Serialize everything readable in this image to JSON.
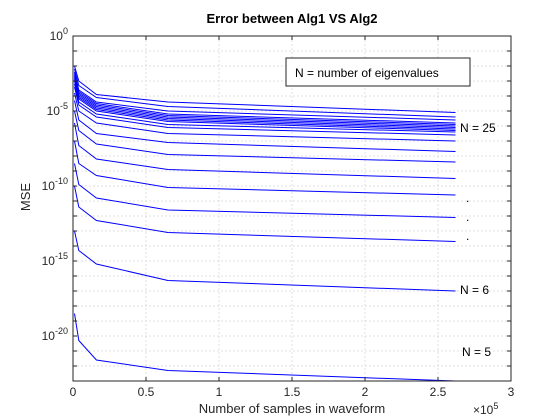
{
  "chart_data": {
    "type": "line",
    "title": "Error between Alg1 VS Alg2",
    "xlabel": "Number of samples in waveform",
    "ylabel": "MSE",
    "x_exponent_label": "×10",
    "x_exponent_power": "5",
    "xlim": [
      0,
      300000
    ],
    "ylim": [
      1e-23,
      1
    ],
    "yscale": "log",
    "grid": true,
    "line_color": "#0000ff",
    "x_ticks": [
      0,
      50000,
      100000,
      150000,
      200000,
      250000,
      300000
    ],
    "x_tick_labels": [
      "0",
      "0.5",
      "1",
      "1.5",
      "2",
      "2.5",
      "3"
    ],
    "y_ticks": [
      1e-20,
      1e-15,
      1e-10,
      1e-05,
      1
    ],
    "y_tick_labels": [
      {
        "base": "10",
        "exp": "-20"
      },
      {
        "base": "10",
        "exp": "-15"
      },
      {
        "base": "10",
        "exp": "-10"
      },
      {
        "base": "10",
        "exp": "-5"
      },
      {
        "base": "10",
        "exp": "0"
      }
    ],
    "x": [
      1000,
      4000,
      16000,
      65000,
      262000
    ],
    "series": [
      {
        "values_log10": [
          -18.5,
          -20.3,
          -21.6,
          -22.3,
          -23.0
        ]
      },
      {
        "values_log10": [
          -13.0,
          -14.3,
          -15.2,
          -16.3,
          -17.0
        ]
      },
      {
        "values_log10": [
          -10.0,
          -11.4,
          -12.3,
          -13.1,
          -13.7
        ]
      },
      {
        "values_log10": [
          -8.5,
          -9.9,
          -10.8,
          -11.6,
          -12.1
        ]
      },
      {
        "values_log10": [
          -7.0,
          -8.5,
          -9.3,
          -10.1,
          -10.6
        ]
      },
      {
        "values_log10": [
          -5.8,
          -7.3,
          -8.2,
          -8.9,
          -9.5
        ]
      },
      {
        "values_log10": [
          -5.0,
          -6.3,
          -7.2,
          -7.9,
          -8.4
        ]
      },
      {
        "values_log10": [
          -4.3,
          -5.6,
          -6.5,
          -7.1,
          -7.7
        ]
      },
      {
        "values_log10": [
          -3.8,
          -5.0,
          -5.8,
          -6.5,
          -7.0
        ]
      },
      {
        "values_log10": [
          -3.4,
          -4.6,
          -5.4,
          -6.1,
          -6.6
        ]
      },
      {
        "values_log10": [
          -3.2,
          -4.4,
          -5.2,
          -5.9,
          -6.4
        ]
      },
      {
        "values_log10": [
          -3.0,
          -4.2,
          -5.0,
          -5.7,
          -6.3
        ]
      },
      {
        "values_log10": [
          -2.9,
          -4.1,
          -4.9,
          -5.6,
          -6.2
        ]
      },
      {
        "values_log10": [
          -2.8,
          -4.0,
          -4.8,
          -5.5,
          -6.1
        ]
      },
      {
        "values_log10": [
          -2.7,
          -3.9,
          -4.7,
          -5.4,
          -6.0
        ]
      },
      {
        "values_log10": [
          -2.6,
          -3.8,
          -4.6,
          -5.3,
          -5.9
        ]
      },
      {
        "values_log10": [
          -2.5,
          -3.7,
          -4.5,
          -5.2,
          -5.8
        ]
      },
      {
        "values_log10": [
          -2.4,
          -3.6,
          -4.4,
          -5.0,
          -5.6
        ]
      },
      {
        "values_log10": [
          -2.2,
          -3.3,
          -4.1,
          -4.7,
          -5.4
        ]
      },
      {
        "values_log10": [
          -2.0,
          -3.0,
          -3.9,
          -4.4,
          -5.1
        ]
      }
    ],
    "legend_text": "N = number of eigenvalues",
    "annotations": {
      "n25": "N = 25",
      "n6": "N = 6",
      "n5": "N = 5",
      "dot1": ".",
      "dot2": ".",
      "dot3": "."
    }
  }
}
